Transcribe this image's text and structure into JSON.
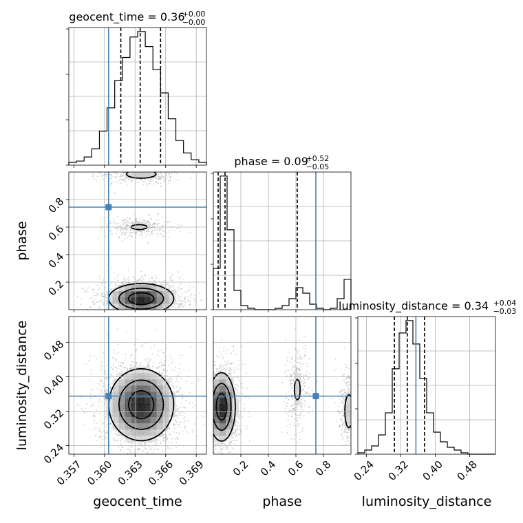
{
  "chart_data": {
    "type": "corner",
    "parameters": [
      "geocent_time",
      "phase",
      "luminosity_distance"
    ],
    "truths": {
      "geocent_time": 0.3604,
      "phase": 0.745,
      "luminosity_distance": 0.355
    },
    "axes": {
      "geocent_time": {
        "range": [
          0.3565,
          0.37
        ],
        "ticks": [
          0.357,
          0.36,
          0.363,
          0.366,
          0.369
        ],
        "ticklabels": [
          "0.357",
          "0.360",
          "0.363",
          "0.366",
          "0.369"
        ]
      },
      "phase": {
        "range": [
          0.0,
          1.0
        ],
        "ticks": [
          0.2,
          0.4,
          0.6,
          0.8
        ],
        "ticklabels": [
          "0.2",
          "0.4",
          "0.6",
          "0.8"
        ],
        "diag_ticks": []
      },
      "luminosity_distance": {
        "range": [
          0.22,
          0.54
        ],
        "ticks": [
          0.24,
          0.32,
          0.4,
          0.48
        ],
        "ticklabels": [
          "0.24",
          "0.32",
          "0.40",
          "0.48"
        ]
      }
    },
    "diagonal": [
      {
        "parameter": "geocent_time",
        "title_main": "geocent_time = 0.36",
        "title_sup": "+0.00",
        "title_sub": "−0.00",
        "quantiles": [
          0.3616,
          0.3635,
          0.3655
        ],
        "bin_edges": [
          0.3565,
          0.35725,
          0.358,
          0.35875,
          0.3595,
          0.36025,
          0.361,
          0.36175,
          0.3625,
          0.36325,
          0.364,
          0.36475,
          0.3655,
          0.36625,
          0.367,
          0.36775,
          0.3685,
          0.36925,
          0.37
        ],
        "counts": [
          2,
          3,
          6,
          12,
          25,
          42,
          62,
          79,
          94,
          98,
          87,
          70,
          53,
          34,
          18,
          9,
          4,
          2
        ]
      },
      {
        "parameter": "phase",
        "title_main": "phase = 0.09",
        "title_sup": "+0.52",
        "title_sub": "−0.05",
        "quantiles": [
          0.035,
          0.085,
          0.61
        ],
        "bin_edges": [
          0.0,
          0.05,
          0.1,
          0.15,
          0.2,
          0.25,
          0.3,
          0.35,
          0.4,
          0.45,
          0.5,
          0.55,
          0.6,
          0.65,
          0.7,
          0.75,
          0.8,
          0.85,
          0.9,
          0.95,
          1.0
        ],
        "counts": [
          30,
          97,
          58,
          14,
          3,
          1,
          0,
          0,
          0,
          1,
          3,
          8,
          16,
          12,
          4,
          1,
          0,
          1,
          8,
          22
        ]
      },
      {
        "parameter": "luminosity_distance",
        "title_main": "luminosity_distance = 0.34",
        "title_sup": "+0.04",
        "title_sub": "−0.03",
        "quantiles": [
          0.305,
          0.335,
          0.375
        ],
        "bin_edges": [
          0.22,
          0.236,
          0.252,
          0.268,
          0.284,
          0.3,
          0.316,
          0.332,
          0.348,
          0.364,
          0.38,
          0.396,
          0.412,
          0.428,
          0.444,
          0.46,
          0.476,
          0.492,
          0.508,
          0.524,
          0.54
        ],
        "counts": [
          1,
          3,
          6,
          14,
          30,
          62,
          88,
          97,
          80,
          55,
          30,
          16,
          9,
          5,
          3,
          1,
          0,
          0,
          0,
          0
        ]
      }
    ],
    "pairs": [
      {
        "x": "geocent_time",
        "y": "phase",
        "modes": [
          {
            "cx": 0.3636,
            "cy": 0.08,
            "sx": 0.0016,
            "sy": 0.055,
            "weight": 0.72
          },
          {
            "cx": 0.3634,
            "cy": 0.6,
            "sx": 0.0013,
            "sy": 0.03,
            "weight": 0.12
          },
          {
            "cx": 0.3636,
            "cy": 0.985,
            "sx": 0.0015,
            "sy": 0.03,
            "weight": 0.16
          }
        ]
      },
      {
        "x": "geocent_time",
        "y": "luminosity_distance",
        "modes": [
          {
            "cx": 0.3636,
            "cy": 0.335,
            "sx": 0.0016,
            "sy": 0.042,
            "weight": 1.0
          }
        ]
      },
      {
        "x": "phase",
        "y": "luminosity_distance",
        "modes": [
          {
            "cx": 0.06,
            "cy": 0.33,
            "sx": 0.05,
            "sy": 0.04,
            "weight": 0.72
          },
          {
            "cx": 0.61,
            "cy": 0.37,
            "sx": 0.035,
            "sy": 0.04,
            "weight": 0.12
          },
          {
            "cx": 0.985,
            "cy": 0.32,
            "sx": 0.03,
            "sy": 0.04,
            "weight": 0.16
          }
        ]
      }
    ]
  }
}
